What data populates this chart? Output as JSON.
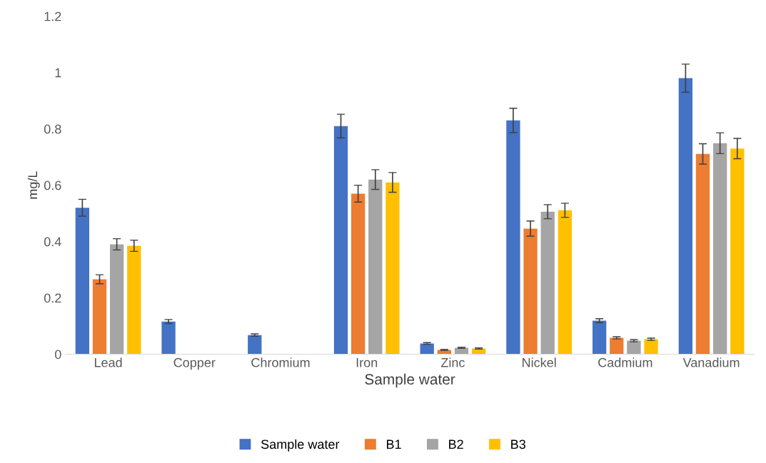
{
  "chart_data": {
    "type": "bar",
    "xlabel": "Sample water",
    "ylabel": "mg/L",
    "categories": [
      "Lead",
      "Copper",
      "Chromium",
      "Iron",
      "Zinc",
      "Nickel",
      "Cadmium",
      "Vanadium"
    ],
    "series": [
      {
        "name": "Sample water",
        "color": "#4472c4",
        "values": [
          0.52,
          0.116,
          0.068,
          0.81,
          0.038,
          0.83,
          0.119,
          0.98
        ],
        "errors": [
          0.03,
          0.007,
          0.004,
          0.042,
          0.003,
          0.043,
          0.007,
          0.05
        ]
      },
      {
        "name": "B1",
        "color": "#ed7d31",
        "values": [
          0.266,
          0,
          0,
          0.57,
          0.015,
          0.446,
          0.058,
          0.711
        ],
        "errors": [
          0.016,
          null,
          null,
          0.03,
          0.002,
          0.027,
          0.004,
          0.036
        ]
      },
      {
        "name": "B2",
        "color": "#a5a5a5",
        "values": [
          0.39,
          0,
          0,
          0.62,
          0.023,
          0.506,
          0.048,
          0.749
        ],
        "errors": [
          0.02,
          null,
          null,
          0.035,
          0.002,
          0.025,
          0.004,
          0.037
        ]
      },
      {
        "name": "B3",
        "color": "#ffc000",
        "values": [
          0.385,
          0,
          0,
          0.61,
          0.02,
          0.511,
          0.053,
          0.73
        ],
        "errors": [
          0.02,
          null,
          null,
          0.035,
          0.002,
          0.025,
          0.004,
          0.036
        ]
      }
    ],
    "ylim": [
      0,
      1.2
    ],
    "yticks": [
      0,
      0.2,
      0.4,
      0.6,
      0.8,
      1,
      1.2
    ],
    "grid": false,
    "legend": "bottom"
  }
}
